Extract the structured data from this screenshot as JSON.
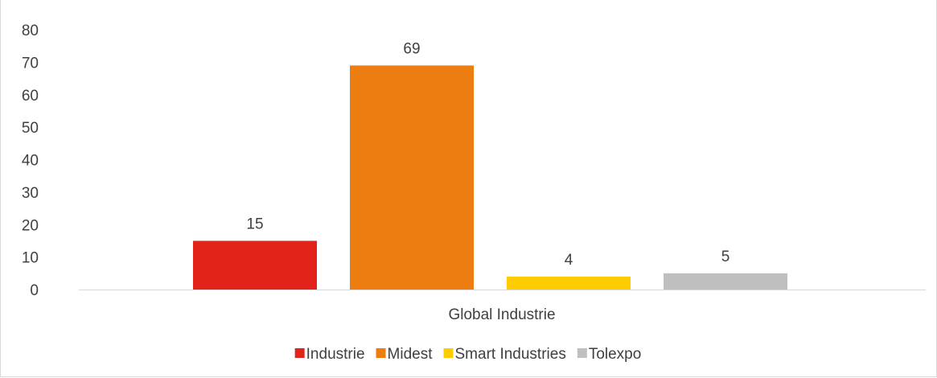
{
  "chart_data": {
    "type": "bar",
    "categories": [
      "Global Industrie"
    ],
    "series": [
      {
        "name": "Industrie",
        "values": [
          15
        ],
        "color": "#e2231a"
      },
      {
        "name": "Midest",
        "values": [
          69
        ],
        "color": "#ed7d10"
      },
      {
        "name": "Smart Industries",
        "values": [
          4
        ],
        "color": "#ffcc00"
      },
      {
        "name": "Tolexpo",
        "values": [
          5
        ],
        "color": "#bfbfbf"
      }
    ],
    "yticks": [
      "0",
      "10",
      "20",
      "30",
      "40",
      "50",
      "60",
      "70",
      "80"
    ],
    "ylim": [
      0,
      80
    ],
    "grid": false,
    "data_labels": true,
    "legend_position": "bottom"
  }
}
